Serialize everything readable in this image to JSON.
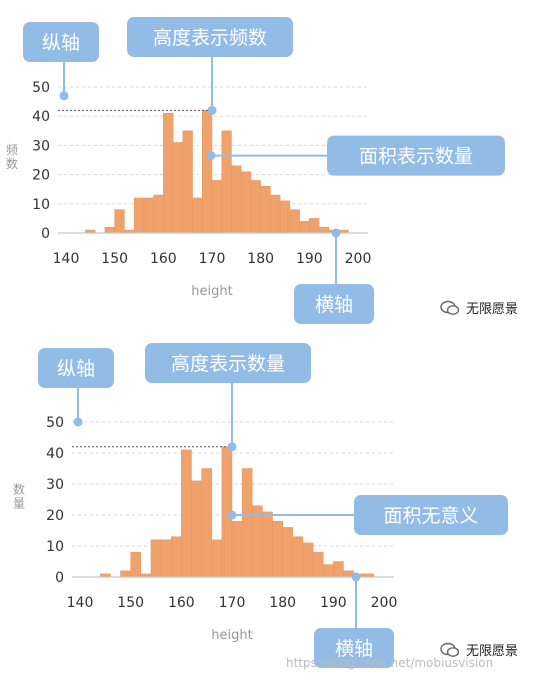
{
  "colors": {
    "bar": "#F0A26D",
    "bar_edge": "#E8955C",
    "callout_bg": "#92BCE6",
    "callout_text": "#ffffff",
    "grid": "#D8D8D8",
    "axis_text": "#333333",
    "label_text": "#999999"
  },
  "chart_data": [
    {
      "type": "bar",
      "xlabel": "height",
      "ylabel": "频数",
      "xlim": [
        140,
        200
      ],
      "ylim": [
        0,
        50
      ],
      "xticks": [
        "140",
        "150",
        "160",
        "170",
        "180",
        "190",
        "200"
      ],
      "yticks": [
        "0",
        "10",
        "20",
        "30",
        "40",
        "50"
      ],
      "bin_width": 2,
      "bins_start": [
        140,
        142,
        144,
        146,
        148,
        150,
        152,
        154,
        156,
        158,
        160,
        162,
        164,
        166,
        168,
        170,
        172,
        174,
        176,
        178,
        180,
        182,
        184,
        186,
        188,
        190,
        192,
        194,
        196,
        198
      ],
      "values": [
        0,
        0,
        1,
        0,
        2,
        8,
        1,
        12,
        12,
        13,
        41,
        31,
        35,
        12,
        42,
        18,
        35,
        23,
        21,
        18,
        16,
        13,
        11,
        8,
        4,
        5,
        2,
        1,
        1,
        0
      ],
      "annotations": {
        "y_axis": "纵轴",
        "bar_height": "高度表示频数",
        "area": "面积表示数量",
        "x_axis": "横轴"
      }
    },
    {
      "type": "bar",
      "xlabel": "height",
      "ylabel": "数量",
      "xlim": [
        140,
        200
      ],
      "ylim": [
        0,
        50
      ],
      "xticks": [
        "140",
        "150",
        "160",
        "170",
        "180",
        "190",
        "200"
      ],
      "yticks": [
        "0",
        "10",
        "20",
        "30",
        "40",
        "50"
      ],
      "bin_width": 2,
      "bins_start": [
        140,
        142,
        144,
        146,
        148,
        150,
        152,
        154,
        156,
        158,
        160,
        162,
        164,
        166,
        168,
        170,
        172,
        174,
        176,
        178,
        180,
        182,
        184,
        186,
        188,
        190,
        192,
        194,
        196,
        198
      ],
      "values": [
        0,
        0,
        1,
        0,
        2,
        8,
        1,
        12,
        12,
        13,
        41,
        31,
        35,
        12,
        42,
        18,
        35,
        23,
        21,
        18,
        16,
        13,
        11,
        8,
        4,
        5,
        2,
        1,
        1,
        0
      ],
      "annotations": {
        "y_axis": "纵轴",
        "bar_height": "高度表示数量",
        "area": "面积无意义",
        "x_axis": "横轴"
      }
    }
  ],
  "watermark": {
    "brand": "无限愿景",
    "url": "https://blog.csdn.net/mobiusvision"
  }
}
